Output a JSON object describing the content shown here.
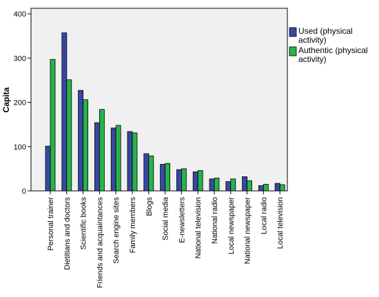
{
  "chart_data": {
    "type": "bar",
    "ylabel": "Capita",
    "xlabel": "",
    "ylim": [
      0,
      400
    ],
    "yticks": [
      0,
      100,
      200,
      300,
      400
    ],
    "grid": false,
    "legend_position": "right",
    "categories": [
      "Personal trainer",
      "Dietitians and doctors",
      "Scientific books",
      "Friends and acquaintances",
      "Search engine sites",
      "Family members",
      "Blogs",
      "Social media",
      "E-newsletters",
      "National television",
      "National radio",
      "Local newspaper",
      "National newspaper",
      "Local radio",
      "Local television"
    ],
    "series": [
      {
        "name": "Used (physical activity)",
        "legend_lines": [
          "Used (physical",
          "activity)"
        ],
        "color": "#3a47a2",
        "values": [
          101,
          357,
          227,
          154,
          142,
          134,
          84,
          60,
          48,
          43,
          27,
          21,
          32,
          12,
          17
        ]
      },
      {
        "name": "Authentic (physical activity)",
        "legend_lines": [
          "Authentic (physical",
          "activity)"
        ],
        "color": "#27b34a",
        "values": [
          297,
          251,
          206,
          184,
          148,
          131,
          79,
          62,
          50,
          46,
          29,
          27,
          23,
          15,
          14
        ]
      }
    ],
    "plot_background": "#f0f0f0"
  }
}
